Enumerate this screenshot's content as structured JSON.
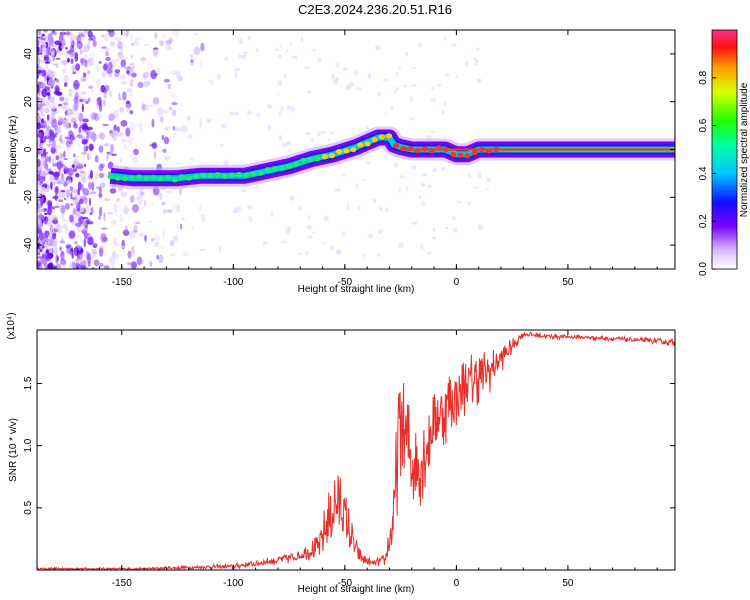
{
  "title": "C2E3.2024.236.20.51.R16",
  "colors": {
    "snr_line": "#e8302a",
    "axis": "#000000",
    "ridge_core": "#e83a2a",
    "ridge_edge": "#1a22cc"
  },
  "chart_data": [
    {
      "type": "heatmap",
      "name": "spectrogram",
      "xlabel": "Height of straight line (km)",
      "ylabel": "Frequency (Hz)",
      "xlim": [
        -188,
        98
      ],
      "ylim": [
        -50,
        50
      ],
      "xticks": [
        -150,
        -100,
        -50,
        0,
        50
      ],
      "yticks": [
        -40,
        -20,
        0,
        20,
        40
      ],
      "colorbar": {
        "label": "Normalized spectral amplitude",
        "range": [
          0.0,
          1.0
        ],
        "ticks": [
          0.0,
          0.2,
          0.4,
          0.6,
          0.8
        ]
      },
      "ridge": {
        "x": [
          -155,
          -145,
          -135,
          -125,
          -115,
          -105,
          -95,
          -85,
          -75,
          -65,
          -55,
          -45,
          -40,
          -35,
          -30,
          -28,
          -25,
          -20,
          -15,
          -10,
          -5,
          0,
          5,
          10,
          15,
          20,
          98
        ],
        "y": [
          -11,
          -12,
          -12,
          -12,
          -11,
          -11,
          -11,
          -9,
          -7,
          -4,
          -2,
          1,
          3,
          5,
          5,
          2,
          1,
          0,
          0,
          0,
          0,
          -2,
          -2,
          0,
          0,
          0,
          0
        ]
      }
    },
    {
      "type": "line",
      "name": "snr",
      "xlabel": "Height of straight line (km)",
      "ylabel": "SNR (10 * v/v)",
      "scale_label": "(x10⁴)",
      "xlim": [
        -188,
        98
      ],
      "ylim": [
        0,
        1.93
      ],
      "xticks": [
        -150,
        -100,
        -50,
        0,
        50
      ],
      "yticks": [
        0.5,
        1.0,
        1.5
      ],
      "series": [
        {
          "name": "SNR",
          "envelope_x": [
            -188,
            -140,
            -120,
            -100,
            -90,
            -80,
            -70,
            -62,
            -58,
            -55,
            -52,
            -48,
            -44,
            -38,
            -32,
            -28,
            -26,
            -24,
            -22,
            -18,
            -15,
            -10,
            -5,
            0,
            5,
            10,
            15,
            20,
            25,
            30,
            40,
            60,
            80,
            98
          ],
          "envelope_y": [
            0.01,
            0.01,
            0.02,
            0.03,
            0.05,
            0.08,
            0.12,
            0.18,
            0.35,
            0.5,
            0.55,
            0.3,
            0.12,
            0.05,
            0.08,
            0.4,
            1.1,
            1.2,
            1.0,
            0.8,
            0.9,
            1.2,
            1.3,
            1.4,
            1.5,
            1.55,
            1.6,
            1.7,
            1.8,
            1.9,
            1.88,
            1.87,
            1.85,
            1.83
          ],
          "noise_amp": [
            0.01,
            0.01,
            0.015,
            0.02,
            0.03,
            0.04,
            0.06,
            0.1,
            0.25,
            0.35,
            0.3,
            0.2,
            0.08,
            0.03,
            0.05,
            0.3,
            0.55,
            0.6,
            0.45,
            0.35,
            0.35,
            0.3,
            0.3,
            0.28,
            0.25,
            0.22,
            0.18,
            0.12,
            0.06,
            0.03,
            0.02,
            0.02,
            0.02,
            0.03
          ]
        }
      ]
    }
  ]
}
